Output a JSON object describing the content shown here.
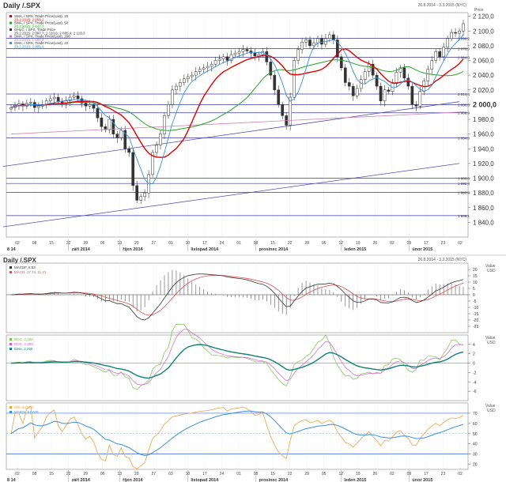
{
  "header": {
    "title": "Daily /.SPX",
    "date_range": "26.8.2014 - 3.3.2015 (NYC)"
  },
  "colors": {
    "candle": "#333333",
    "sma20": "#e00000",
    "sma50": "#2aa02a",
    "sma10": "#3a8fe0",
    "sma200": "#d080b0",
    "level": "#3a3a9a",
    "trend": "#5050b0",
    "macd": "#e05050",
    "signal": "#333333",
    "roc": "#7ac050",
    "rocma": "#d060d0",
    "roce": "#108070",
    "rsi": "#f0a040",
    "rsima": "#3a8fe0",
    "band": "#3a6ad0"
  },
  "legend": [
    {
      "text": "SMA, /.SPX, Trade Price(Last), 20",
      "value": "20.2.2015: 2 059,2",
      "color": "#e00000"
    },
    {
      "text": "SMA, /.SPX, Trade Price(Last), 50",
      "value": "20.2.2015: 2 047,7",
      "color": "#2aa02a"
    },
    {
      "text": "OHLC, /.SPX, Trade Price",
      "value": "20.2.2015: 2 097,7; 2 110,6; 2 085,4; 2 110,3",
      "color": "#333333"
    },
    {
      "text": "SMA, /.SPX, Trade Price(Last), 200",
      "value": "20.2.2015: 1 988,4",
      "color": "#d080b0"
    },
    {
      "text": "SMA, /.SPX, Trade Price(Last), 10",
      "value": "20.2.2015: 2 085,6",
      "color": "#3a8fe0"
    }
  ],
  "level_labels": [
    "2 090,2",
    "2 076,0",
    "2 064,3",
    "2 014,4",
    "2 000,0",
    "1 988,9",
    "1 954,8",
    "1 900,0",
    "1 892,8",
    "1 880,8",
    "1 849,1"
  ],
  "x_labels": {
    "ticks": [
      "02",
      "08",
      "15",
      "22",
      "29",
      "06",
      "13",
      "20",
      "27",
      "03",
      "10",
      "17",
      "24",
      "01",
      "08",
      "15",
      "22",
      "29",
      "05",
      "12",
      "19",
      "26",
      "02",
      "09",
      "17",
      "23",
      "02"
    ],
    "months": [
      "8 14",
      "září 2014",
      "říjen 2014",
      "listopad 2014",
      "prosinec 2014",
      "leden 2015",
      "únor 2015"
    ]
  },
  "macd_legend": [
    {
      "text": "MACDF, 6,53",
      "color": "#333333"
    },
    {
      "text": "MACD, 17,74, 11,21",
      "color": "#e05050"
    }
  ],
  "roc_legend": [
    {
      "text": "ROC, 2,268",
      "color": "#7ac050"
    },
    {
      "text": "ROC, 2,265",
      "color": "#d060d0"
    },
    {
      "text": "EMA, 2,266",
      "color": "#108070"
    }
  ],
  "rsi_legend": [
    {
      "text": "RSI, 64,574",
      "color": "#f0a040"
    },
    {
      "text": "MARSI, 67,079",
      "color": "#3a8fe0"
    }
  ],
  "axis_unit": {
    "price": "Price",
    "value": "Value",
    "usd": "USD"
  },
  "chart_data": [
    {
      "type": "candlestick",
      "title": "Daily /.SPX",
      "ylabel": "Price",
      "ylim": [
        1820,
        2125
      ],
      "yticks": [
        1840,
        1860,
        1880,
        1900,
        1920,
        1940,
        1960,
        1980,
        2000,
        2020,
        2040,
        2060,
        2080,
        2100,
        2120
      ],
      "ytick_labels": [
        "1 840,0",
        "1 860,0",
        "1 880,0",
        "1 900,0",
        "1 920,0",
        "1 940,0",
        "1 960,0",
        "1 980,0",
        "2 000,0",
        "2 020,0",
        "2 040,0",
        "2 060,0",
        "2 080,0",
        "2 100,0",
        "2 120,0"
      ],
      "highlight_tick": "2 000,0",
      "close": [
        1996,
        1999,
        2001,
        1998,
        2002,
        2003,
        1996,
        1998,
        2000,
        2005,
        2008,
        2010,
        2004,
        2001,
        2005,
        2010,
        2012,
        2008,
        2002,
        1998,
        2000,
        1995,
        1982,
        1970,
        1966,
        1980,
        1960,
        1955,
        1965,
        1940,
        1935,
        1890,
        1870,
        1875,
        1880,
        1905,
        1935,
        1945,
        1960,
        1985,
        2000,
        2020,
        2025,
        2030,
        2035,
        2038,
        2040,
        2045,
        2048,
        2050,
        2052,
        2055,
        2060,
        2062,
        2065,
        2060,
        2068,
        2070,
        2072,
        2075,
        2073,
        2070,
        2066,
        2068,
        2072,
        2058,
        2040,
        2020,
        2000,
        1985,
        1972,
        2010,
        2060,
        2075,
        2085,
        2088,
        2080,
        2084,
        2090,
        2082,
        2090,
        2095,
        2088,
        2065,
        2050,
        2030,
        2025,
        2012,
        2022,
        2034,
        2045,
        2055,
        2040,
        2025,
        2005,
        2020,
        2018,
        2030,
        2044,
        2050,
        2036,
        2025,
        2000,
        1998,
        2018,
        2032,
        2048,
        2060,
        2072,
        2065,
        2078,
        2090,
        2098,
        2097,
        2100,
        2110
      ],
      "series": [
        {
          "name": "SMA 20",
          "last": 2059.2
        },
        {
          "name": "SMA 50",
          "last": 2047.7
        },
        {
          "name": "SMA 200",
          "last": 1988.4
        },
        {
          "name": "SMA 10",
          "last": 2085.6
        }
      ],
      "levels": [
        2090.2,
        2076.0,
        2064.3,
        2014.4,
        2000.0,
        1988.9,
        1954.8,
        1900.0,
        1892.8,
        1880.8,
        1849.1
      ]
    },
    {
      "type": "line",
      "title": "MACD",
      "ylim": [
        -30,
        25
      ],
      "yticks": [
        -25,
        -20,
        -15,
        -10,
        -5,
        0,
        5,
        10,
        15,
        20
      ],
      "ytick_labels": [
        "-25",
        "-20",
        "-15",
        "-10",
        "-5",
        "0",
        "5",
        "10",
        "15",
        "20"
      ]
    },
    {
      "type": "line",
      "title": "ROC",
      "ylim": [
        -8,
        6
      ],
      "yticks": [
        -6,
        -4,
        -2,
        0,
        2,
        4
      ],
      "ytick_labels": [
        "-6",
        "-4",
        "-2",
        "0",
        "2",
        "4"
      ]
    },
    {
      "type": "line",
      "title": "RSI",
      "ylim": [
        15,
        80
      ],
      "yticks": [
        20,
        30,
        40,
        50,
        60,
        70
      ],
      "ytick_labels": [
        "20",
        "30",
        "40",
        "50",
        "60",
        "70"
      ],
      "bands": [
        70,
        30
      ]
    }
  ]
}
